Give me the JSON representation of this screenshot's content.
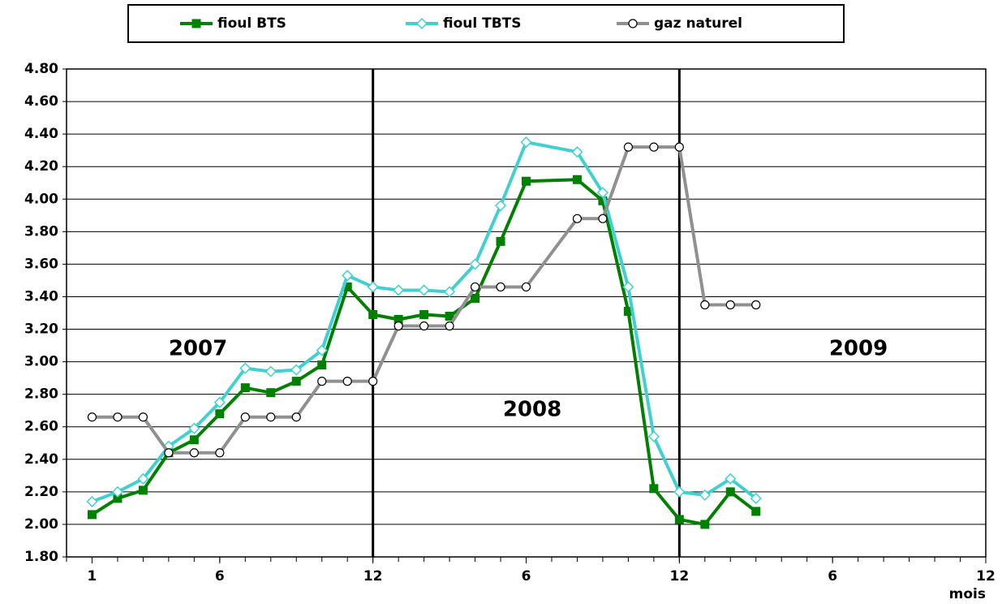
{
  "chart_data": {
    "type": "line",
    "x_label": "mois",
    "annotations": [
      "2007",
      "2008",
      "2009"
    ],
    "xlim": [
      0,
      36
    ],
    "xticks": [
      1,
      6,
      12,
      {
        "value": 18,
        "label": "6"
      },
      {
        "value": 24,
        "label": "12"
      },
      {
        "value": 30,
        "label": "6"
      },
      {
        "value": 36,
        "label": "12"
      }
    ],
    "vlines": [
      12,
      24
    ],
    "ylim": [
      1.8,
      4.8
    ],
    "yticks": [
      {
        "value": 1.8,
        "label": "1.80"
      },
      {
        "value": 2.0,
        "label": "2.00"
      },
      {
        "value": 2.2,
        "label": "2.20"
      },
      {
        "value": 2.4,
        "label": "2.40"
      },
      {
        "value": 2.6,
        "label": "2.60"
      },
      {
        "value": 2.8,
        "label": "2.80"
      },
      {
        "value": 3.0,
        "label": "3.00"
      },
      {
        "value": 3.2,
        "label": "3.20"
      },
      {
        "value": 3.4,
        "label": "3.40"
      },
      {
        "value": 3.6,
        "label": "3.60"
      },
      {
        "value": 3.8,
        "label": "3.80"
      },
      {
        "value": 4.0,
        "label": "4.00"
      },
      {
        "value": 4.2,
        "label": "4.20"
      },
      {
        "value": 4.4,
        "label": "4.40"
      },
      {
        "value": 4.6,
        "label": "4.60"
      },
      {
        "value": 4.8,
        "label": "4.80"
      }
    ],
    "grid": true,
    "legend": "top",
    "series": [
      {
        "name": "fioul BTS",
        "color": "#008000",
        "marker": "square",
        "x": [
          1,
          2,
          3,
          4,
          5,
          6,
          7,
          8,
          9,
          10,
          11,
          12,
          13,
          14,
          15,
          16,
          17,
          18,
          20,
          21,
          22,
          23,
          24,
          25,
          26,
          27
        ],
        "values": [
          2.06,
          2.16,
          2.21,
          2.44,
          2.52,
          2.68,
          2.84,
          2.81,
          2.88,
          2.98,
          3.46,
          3.29,
          3.26,
          3.29,
          3.28,
          3.39,
          3.74,
          4.11,
          4.12,
          3.99,
          3.31,
          2.22,
          2.03,
          2.0,
          2.2,
          2.08
        ]
      },
      {
        "name": "fioul TBTS",
        "color": "#40d0d0",
        "marker": "diamond",
        "x": [
          1,
          2,
          3,
          4,
          5,
          6,
          7,
          8,
          9,
          10,
          11,
          12,
          13,
          14,
          15,
          16,
          17,
          18,
          20,
          21,
          22,
          23,
          24,
          25,
          26,
          27
        ],
        "values": [
          2.14,
          2.2,
          2.28,
          2.48,
          2.59,
          2.75,
          2.96,
          2.94,
          2.95,
          3.07,
          3.53,
          3.46,
          3.44,
          3.44,
          3.43,
          3.6,
          3.96,
          4.35,
          4.29,
          4.04,
          3.46,
          2.54,
          2.2,
          2.18,
          2.28,
          2.16
        ]
      },
      {
        "name": "gaz naturel",
        "color": "#909090",
        "marker": "circle",
        "x": [
          1,
          2,
          3,
          4,
          5,
          6,
          7,
          8,
          9,
          10,
          11,
          12,
          13,
          14,
          15,
          16,
          17,
          18,
          20,
          21,
          22,
          23,
          24,
          25,
          26,
          27
        ],
        "values": [
          2.66,
          2.66,
          2.66,
          2.44,
          2.44,
          2.44,
          2.66,
          2.66,
          2.66,
          2.88,
          2.88,
          2.88,
          3.22,
          3.22,
          3.22,
          3.46,
          3.46,
          3.46,
          3.88,
          3.88,
          4.32,
          4.32,
          4.32,
          3.35,
          3.35,
          3.35
        ]
      }
    ]
  }
}
